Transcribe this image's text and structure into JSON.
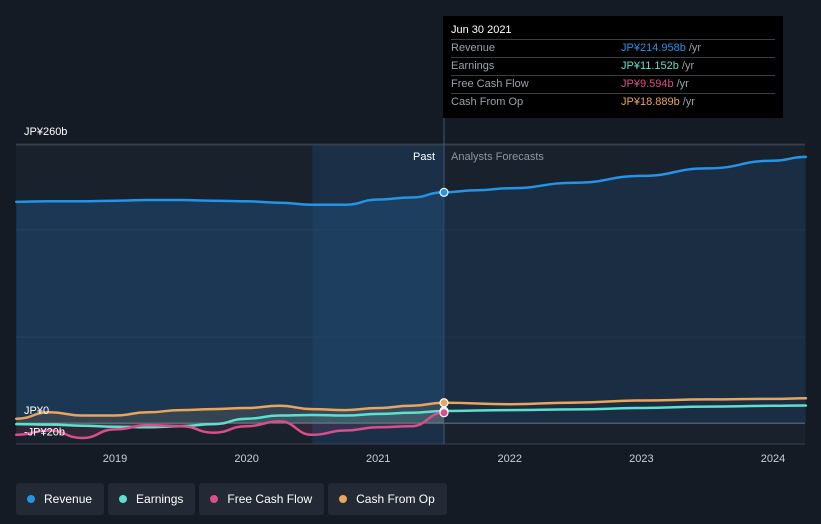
{
  "tooltip": {
    "date": "Jun 30 2021",
    "rows": [
      {
        "name": "Revenue",
        "value": "JP¥214.958b",
        "unit": "/yr",
        "color": "#2394e7"
      },
      {
        "name": "Earnings",
        "value": "JP¥11.152b",
        "unit": "/yr",
        "color": "#5fe0cc"
      },
      {
        "name": "Free Cash Flow",
        "value": "JP¥9.594b",
        "unit": "/yr",
        "color": "#d94f8a"
      },
      {
        "name": "Cash From Op",
        "value": "JP¥18.889b",
        "unit": "/yr",
        "color": "#e9a55a"
      }
    ]
  },
  "labels": {
    "past": "Past",
    "forecast": "Analysts Forecasts"
  },
  "legend": [
    {
      "name": "Revenue",
      "color": "#2394e7"
    },
    {
      "name": "Earnings",
      "color": "#5fe0cc"
    },
    {
      "name": "Free Cash Flow",
      "color": "#d94f8a"
    },
    {
      "name": "Cash From Op",
      "color": "#e9a55a"
    }
  ],
  "chart_data": {
    "type": "line",
    "y_unit": "JP¥ billions",
    "ylim": [
      -20,
      260
    ],
    "xlim": [
      2018.0,
      2024.25
    ],
    "y_tick_labels": [
      {
        "value": 260,
        "label": "JP¥260b"
      },
      {
        "value": 0,
        "label": "JP¥0"
      },
      {
        "value": -20,
        "label": "-JP¥20b"
      }
    ],
    "x_ticks": [
      2019,
      2020,
      2021,
      2022,
      2023,
      2024
    ],
    "past_end": 2021.5,
    "highlight_start": 2020.5,
    "grid": true,
    "series": [
      {
        "name": "Revenue",
        "color": "#2394e7",
        "points": [
          [
            2018.25,
            206
          ],
          [
            2018.5,
            206.7
          ],
          [
            2018.75,
            206.6
          ],
          [
            2019.0,
            207.2
          ],
          [
            2019.25,
            207.8
          ],
          [
            2019.5,
            207.8
          ],
          [
            2019.75,
            207.2
          ],
          [
            2020.0,
            206.6
          ],
          [
            2020.25,
            205.3
          ],
          [
            2020.5,
            203.4
          ],
          [
            2020.75,
            203.4
          ],
          [
            2021.0,
            208.3
          ],
          [
            2021.25,
            210.1
          ],
          [
            2021.5,
            214.958
          ],
          [
            2021.75,
            216.9
          ],
          [
            2022.0,
            218.8
          ],
          [
            2022.5,
            223.9
          ],
          [
            2023.0,
            230.3
          ],
          [
            2023.5,
            237.3
          ],
          [
            2024.0,
            244.4
          ],
          [
            2024.25,
            248
          ]
        ],
        "forecast_from": 2021.5
      },
      {
        "name": "Earnings",
        "color": "#5fe0cc",
        "points": [
          [
            2018.25,
            -1
          ],
          [
            2018.5,
            -1.5
          ],
          [
            2018.75,
            -2.5
          ],
          [
            2019.0,
            -3.5
          ],
          [
            2019.25,
            -4
          ],
          [
            2019.5,
            -3
          ],
          [
            2019.75,
            -1
          ],
          [
            2020.0,
            4
          ],
          [
            2020.25,
            7
          ],
          [
            2020.5,
            7.5
          ],
          [
            2020.75,
            7
          ],
          [
            2021.0,
            8.5
          ],
          [
            2021.25,
            9.5
          ],
          [
            2021.5,
            11.152
          ],
          [
            2022.0,
            12
          ],
          [
            2022.5,
            12.7
          ],
          [
            2023.0,
            14
          ],
          [
            2023.5,
            15.3
          ],
          [
            2024.0,
            16
          ],
          [
            2024.25,
            16.3
          ]
        ],
        "forecast_from": 2021.5
      },
      {
        "name": "Free Cash Flow",
        "color": "#d94f8a",
        "points": [
          [
            2018.25,
            -11
          ],
          [
            2018.5,
            -7
          ],
          [
            2018.75,
            -14
          ],
          [
            2019.0,
            -6
          ],
          [
            2019.25,
            -2
          ],
          [
            2019.5,
            -3
          ],
          [
            2019.75,
            -9
          ],
          [
            2020.0,
            -3
          ],
          [
            2020.25,
            1.5
          ],
          [
            2020.5,
            -11
          ],
          [
            2020.75,
            -7
          ],
          [
            2021.0,
            -4
          ],
          [
            2021.25,
            -3
          ],
          [
            2021.5,
            9.594
          ]
        ],
        "forecast_from": null
      },
      {
        "name": "Cash From Op",
        "color": "#e9a55a",
        "points": [
          [
            2018.25,
            4
          ],
          [
            2018.5,
            10
          ],
          [
            2018.75,
            7
          ],
          [
            2019.0,
            7
          ],
          [
            2019.25,
            10
          ],
          [
            2019.5,
            12
          ],
          [
            2019.75,
            13
          ],
          [
            2020.0,
            14
          ],
          [
            2020.25,
            16
          ],
          [
            2020.5,
            13
          ],
          [
            2020.75,
            12
          ],
          [
            2021.0,
            14
          ],
          [
            2021.25,
            16
          ],
          [
            2021.5,
            18.889
          ],
          [
            2022.0,
            17.5
          ],
          [
            2022.5,
            19
          ],
          [
            2023.0,
            21
          ],
          [
            2023.5,
            22
          ],
          [
            2024.0,
            22.5
          ],
          [
            2024.25,
            23
          ]
        ],
        "forecast_from": 2021.5
      }
    ]
  }
}
